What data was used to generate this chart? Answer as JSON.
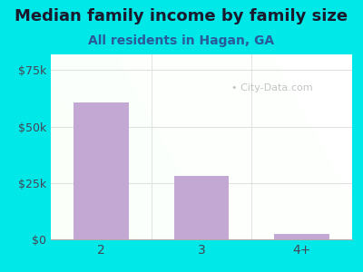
{
  "title": "Median family income by family size",
  "subtitle": "All residents in Hagan, GA",
  "categories": [
    "2",
    "3",
    "4+"
  ],
  "values": [
    60500,
    28000,
    2500
  ],
  "bar_color": "#c4a8d4",
  "background_color": "#00e8e8",
  "title_color": "#1a1a2e",
  "subtitle_color": "#2a5a9a",
  "axis_label_color": "#444455",
  "ytick_labels": [
    "$0",
    "$25k",
    "$50k",
    "$75k"
  ],
  "ytick_values": [
    0,
    25000,
    50000,
    75000
  ],
  "ylim": [
    0,
    82000
  ],
  "watermark": "City-Data.com",
  "title_fontsize": 13,
  "subtitle_fontsize": 10,
  "grid_color": "#dddddd"
}
